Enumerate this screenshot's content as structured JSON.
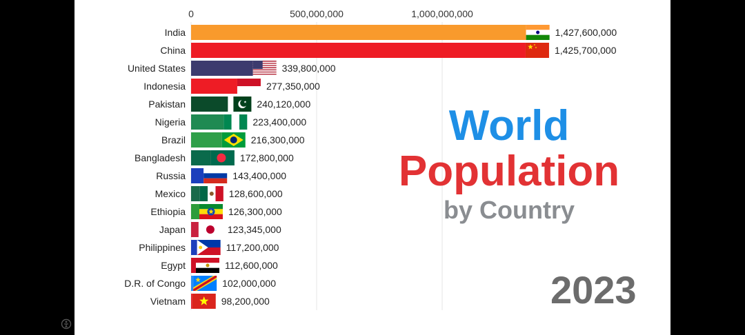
{
  "title": {
    "line1": "World",
    "line2": "Population",
    "line3": "by Country"
  },
  "year": "2023",
  "chart_data": {
    "type": "bar",
    "orientation": "horizontal",
    "x_ticks": [
      "0",
      "500,000,000",
      "1,000,000,000"
    ],
    "xlim": [
      0,
      1500000000
    ],
    "categories": [
      "India",
      "China",
      "United States",
      "Indonesia",
      "Pakistan",
      "Nigeria",
      "Brazil",
      "Bangladesh",
      "Russia",
      "Mexico",
      "Ethiopia",
      "Japan",
      "Philippines",
      "Egypt",
      "D.R. of Congo",
      "Vietnam"
    ],
    "values": [
      1427600000,
      1425700000,
      339800000,
      277350000,
      240120000,
      223400000,
      216300000,
      172800000,
      143400000,
      128600000,
      126300000,
      123345000,
      117200000,
      112600000,
      102000000,
      98200000
    ],
    "value_labels": [
      "1,427,600,000",
      "1,425,700,000",
      "339,800,000",
      "277,350,000",
      "240,120,000",
      "223,400,000",
      "216,300,000",
      "172,800,000",
      "143,400,000",
      "128,600,000",
      "126,300,000",
      "123,345,000",
      "117,200,000",
      "112,600,000",
      "102,000,000",
      "98,200,000"
    ],
    "colors": [
      "#f99a2c",
      "#ee1c25",
      "#3c3b6e",
      "#ee1c25",
      "#0b4a2a",
      "#1f8a52",
      "#2f9f49",
      "#0a6a4b",
      "#1c3fbc",
      "#1a6a4a",
      "#2d9c3a",
      "#c9213f",
      "#1c3fbc",
      "#ce1126",
      "#2a8ef0",
      "#e21f26"
    ],
    "flags": [
      "india-flag",
      "china-flag",
      "united-states-flag",
      "indonesia-flag",
      "pakistan-flag",
      "nigeria-flag",
      "brazil-flag",
      "bangladesh-flag",
      "russia-flag",
      "mexico-flag",
      "ethiopia-flag",
      "japan-flag",
      "philippines-flag",
      "egypt-flag",
      "dr-congo-flag",
      "vietnam-flag"
    ],
    "grid": true
  }
}
